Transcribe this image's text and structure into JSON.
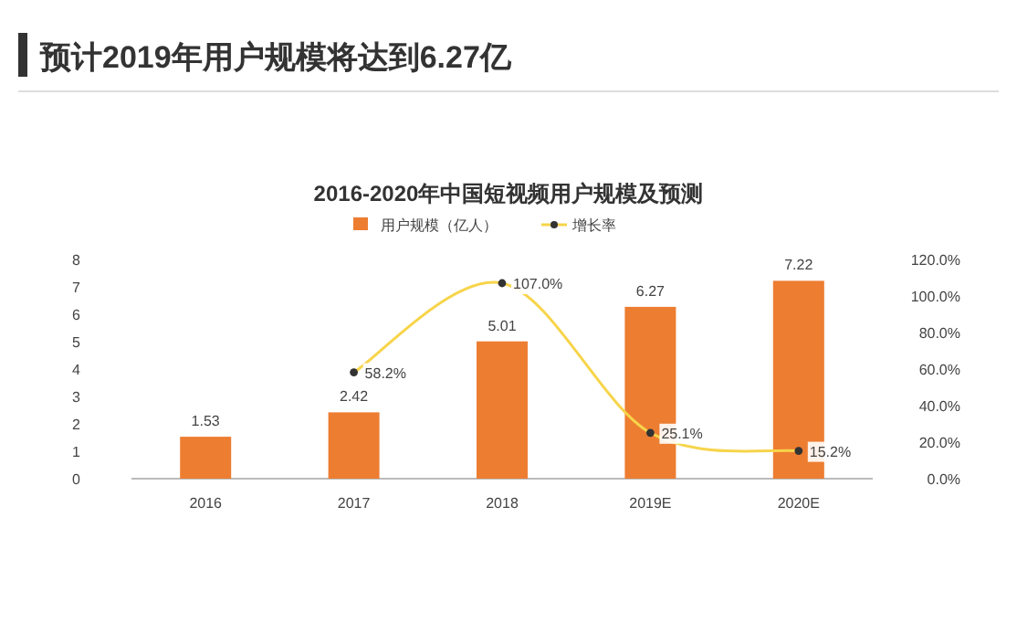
{
  "chart_data": {
    "type": "bar",
    "title": "预计2019年用户规模将达到6.27亿",
    "subtitle": "2016-2020年中国短视频用户规模及预测",
    "categories": [
      "2016",
      "2017",
      "2018",
      "2019E",
      "2020E"
    ],
    "series": [
      {
        "name": "用户规模（亿人）",
        "color": "#ed7d31",
        "values": [
          1.53,
          2.42,
          5.01,
          6.27,
          7.22
        ],
        "value_labels": [
          "1.53",
          "2.42",
          "5.01",
          "6.27",
          "7.22"
        ]
      },
      {
        "name": "增长率",
        "type": "line",
        "axis": "y2",
        "color": "#f7d44a",
        "marker": "circle",
        "values": [
          null,
          58.2,
          107.0,
          25.1,
          15.2
        ],
        "value_labels": [
          null,
          "58.2%",
          "107.0%",
          "25.1%",
          "15.2%"
        ]
      }
    ],
    "ylim": [
      0,
      8
    ],
    "yticks": [
      0,
      1,
      2,
      3,
      4,
      5,
      6,
      7,
      8
    ],
    "y2lim": [
      0,
      120
    ],
    "y2ticks": [
      {
        "value": 0,
        "label": "0.0%"
      },
      {
        "value": 20,
        "label": "20.0%"
      },
      {
        "value": 40,
        "label": "40.0%"
      },
      {
        "value": 60,
        "label": "60.0%"
      },
      {
        "value": 80,
        "label": "80.0%"
      },
      {
        "value": 100,
        "label": "100.0%"
      },
      {
        "value": 120,
        "label": "120.0%"
      }
    ],
    "legend": "top",
    "grid": false
  }
}
